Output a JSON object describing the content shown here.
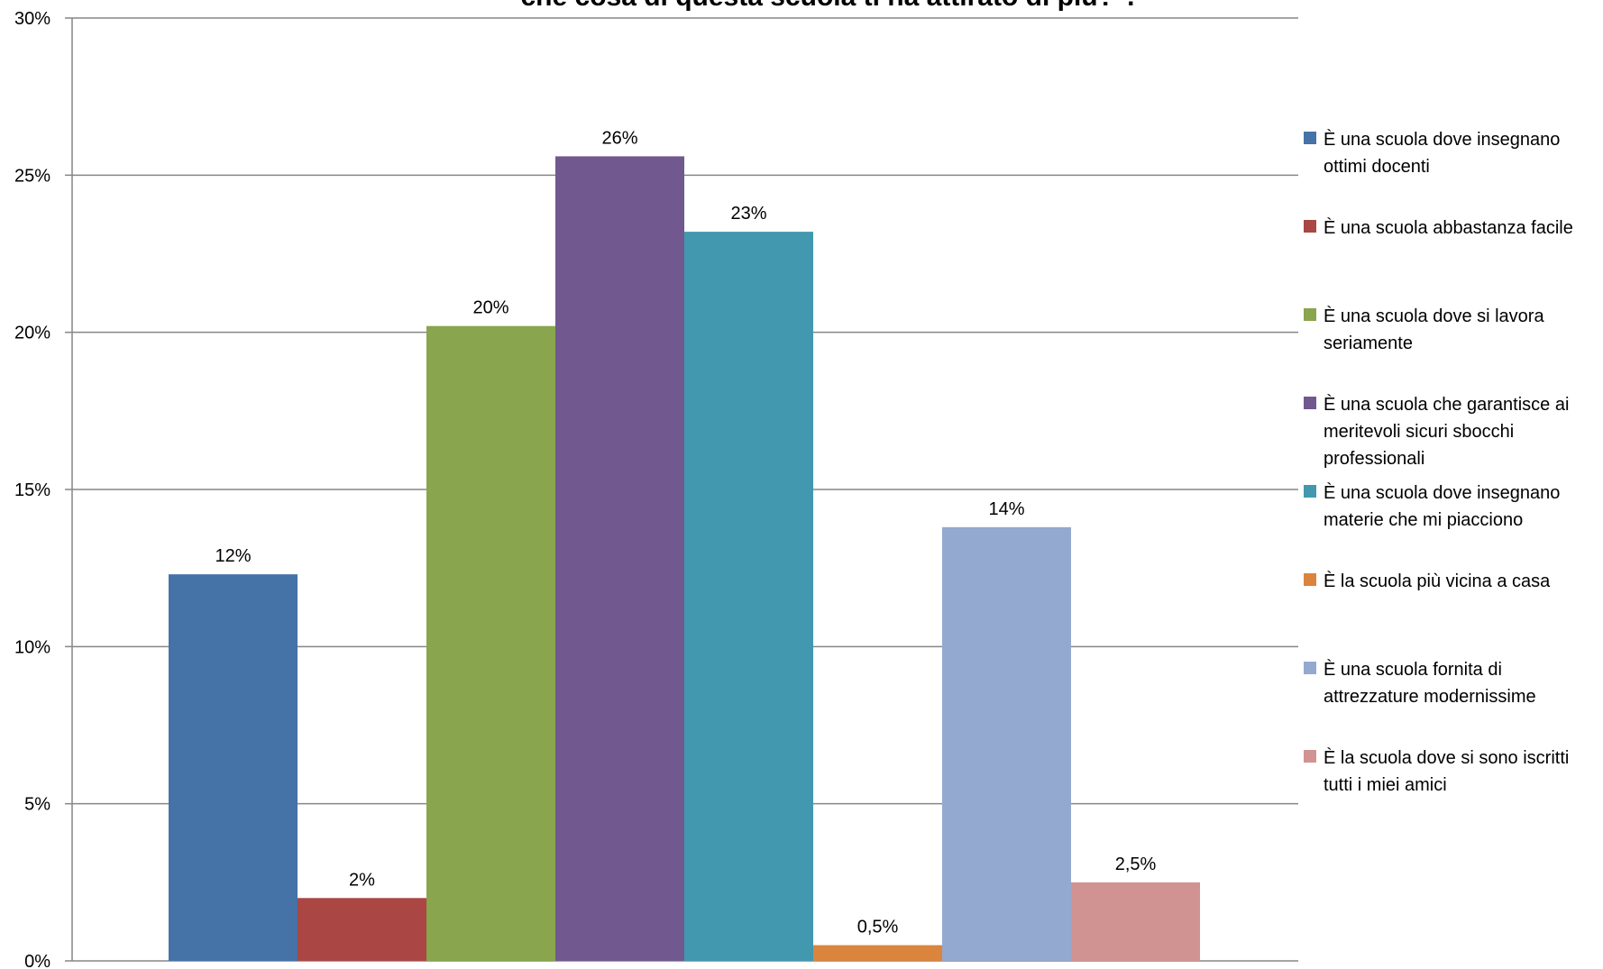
{
  "chart_data": {
    "type": "bar",
    "title": "che cosa di questa scuola ti ha attirato di più?\".",
    "ylim": [
      0,
      30
    ],
    "yticks": [
      "0%",
      "5%",
      "10%",
      "15%",
      "20%",
      "25%",
      "30%"
    ],
    "grid": true,
    "legend_position": "right",
    "series": [
      {
        "name": "È una scuola dove insegnano ottimi docenti",
        "value": 12.3,
        "label": "12%",
        "color": "#4572A7"
      },
      {
        "name": "È una scuola abbastanza facile",
        "value": 2.0,
        "label": "2%",
        "color": "#AA4643"
      },
      {
        "name": "È una scuola dove si lavora seriamente",
        "value": 20.2,
        "label": "20%",
        "color": "#89A54E"
      },
      {
        "name": "È una scuola che garantisce ai meritevoli sicuri sbocchi professionali",
        "value": 25.6,
        "label": "26%",
        "color": "#71588F"
      },
      {
        "name": "È una scuola dove insegnano materie che mi piacciono",
        "value": 23.2,
        "label": "23%",
        "color": "#4198AF"
      },
      {
        "name": "È la scuola più vicina a casa",
        "value": 0.5,
        "label": "0,5%",
        "color": "#DB843D"
      },
      {
        "name": "È una scuola fornita di attrezzature modernissime",
        "value": 13.8,
        "label": "14%",
        "color": "#93A9CF"
      },
      {
        "name": "È la scuola dove si sono iscritti tutti i miei amici",
        "value": 2.5,
        "label": "2,5%",
        "color": "#D19392"
      }
    ]
  }
}
